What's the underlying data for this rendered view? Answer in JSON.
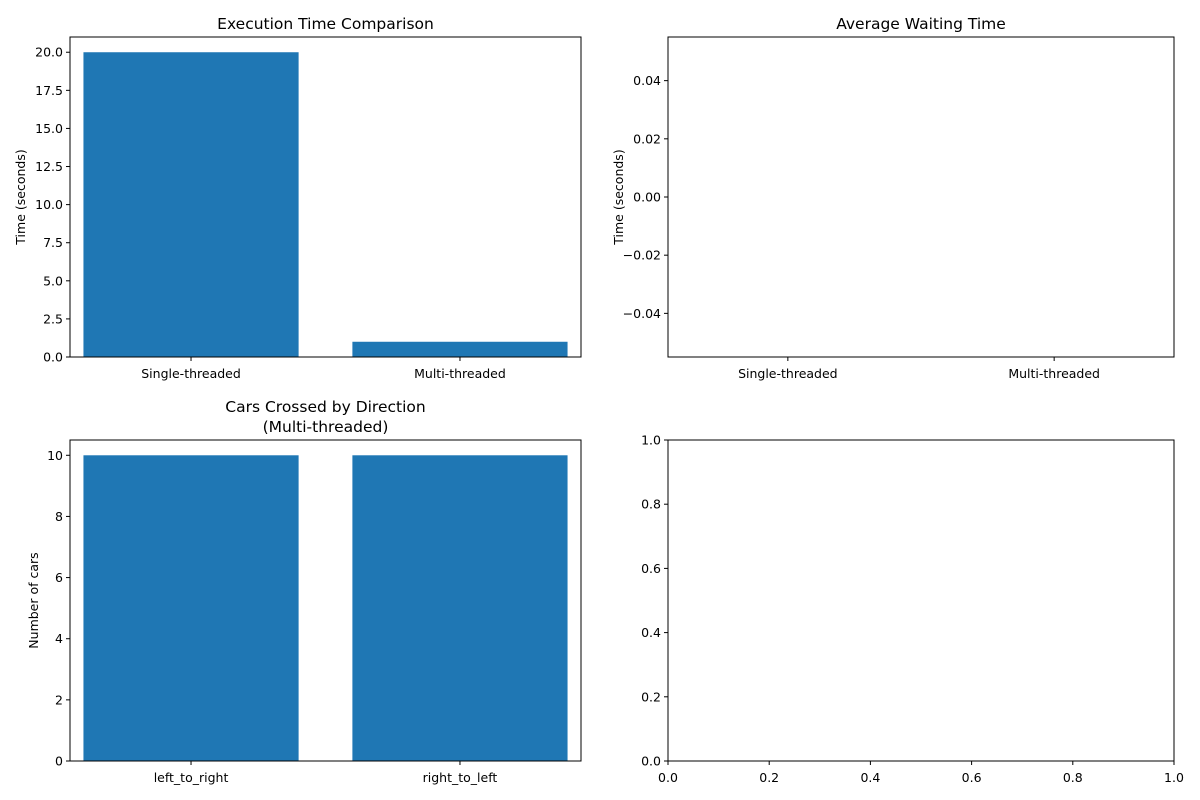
{
  "chart_data": [
    {
      "type": "bar",
      "title": "Execution Time Comparison",
      "ylabel": "Time (seconds)",
      "xlabel": "",
      "categories": [
        "Single-threaded",
        "Multi-threaded"
      ],
      "values": [
        20.0,
        1.0
      ],
      "ylim": [
        0,
        21
      ],
      "yticks": [
        "0.0",
        "2.5",
        "5.0",
        "7.5",
        "10.0",
        "12.5",
        "15.0",
        "17.5",
        "20.0"
      ],
      "bar_color": "#1f77b4"
    },
    {
      "type": "bar",
      "title": "Average Waiting Time",
      "ylabel": "Time (seconds)",
      "xlabel": "",
      "categories": [
        "Single-threaded",
        "Multi-threaded"
      ],
      "values": [
        0,
        0
      ],
      "ylim": [
        -0.055,
        0.055
      ],
      "yticks": [
        "−0.04",
        "−0.02",
        "0.00",
        "0.02",
        "0.04"
      ],
      "bar_color": "#1f77b4"
    },
    {
      "type": "bar",
      "title": "Cars Crossed by Direction",
      "subtitle": "(Multi-threaded)",
      "ylabel": "Number of cars",
      "xlabel": "",
      "categories": [
        "left_to_right",
        "right_to_left"
      ],
      "values": [
        10,
        10
      ],
      "ylim": [
        0,
        10.5
      ],
      "yticks": [
        "0",
        "2",
        "4",
        "6",
        "8",
        "10"
      ],
      "bar_color": "#1f77b4"
    },
    {
      "type": "bar",
      "title": "",
      "ylabel": "",
      "xlabel": "",
      "categories": [],
      "values": [],
      "xlim": [
        0,
        1
      ],
      "ylim": [
        0,
        1
      ],
      "xticks": [
        "0.0",
        "0.2",
        "0.4",
        "0.6",
        "0.8",
        "1.0"
      ],
      "yticks": [
        "0.0",
        "0.2",
        "0.4",
        "0.6",
        "0.8",
        "1.0"
      ]
    }
  ]
}
